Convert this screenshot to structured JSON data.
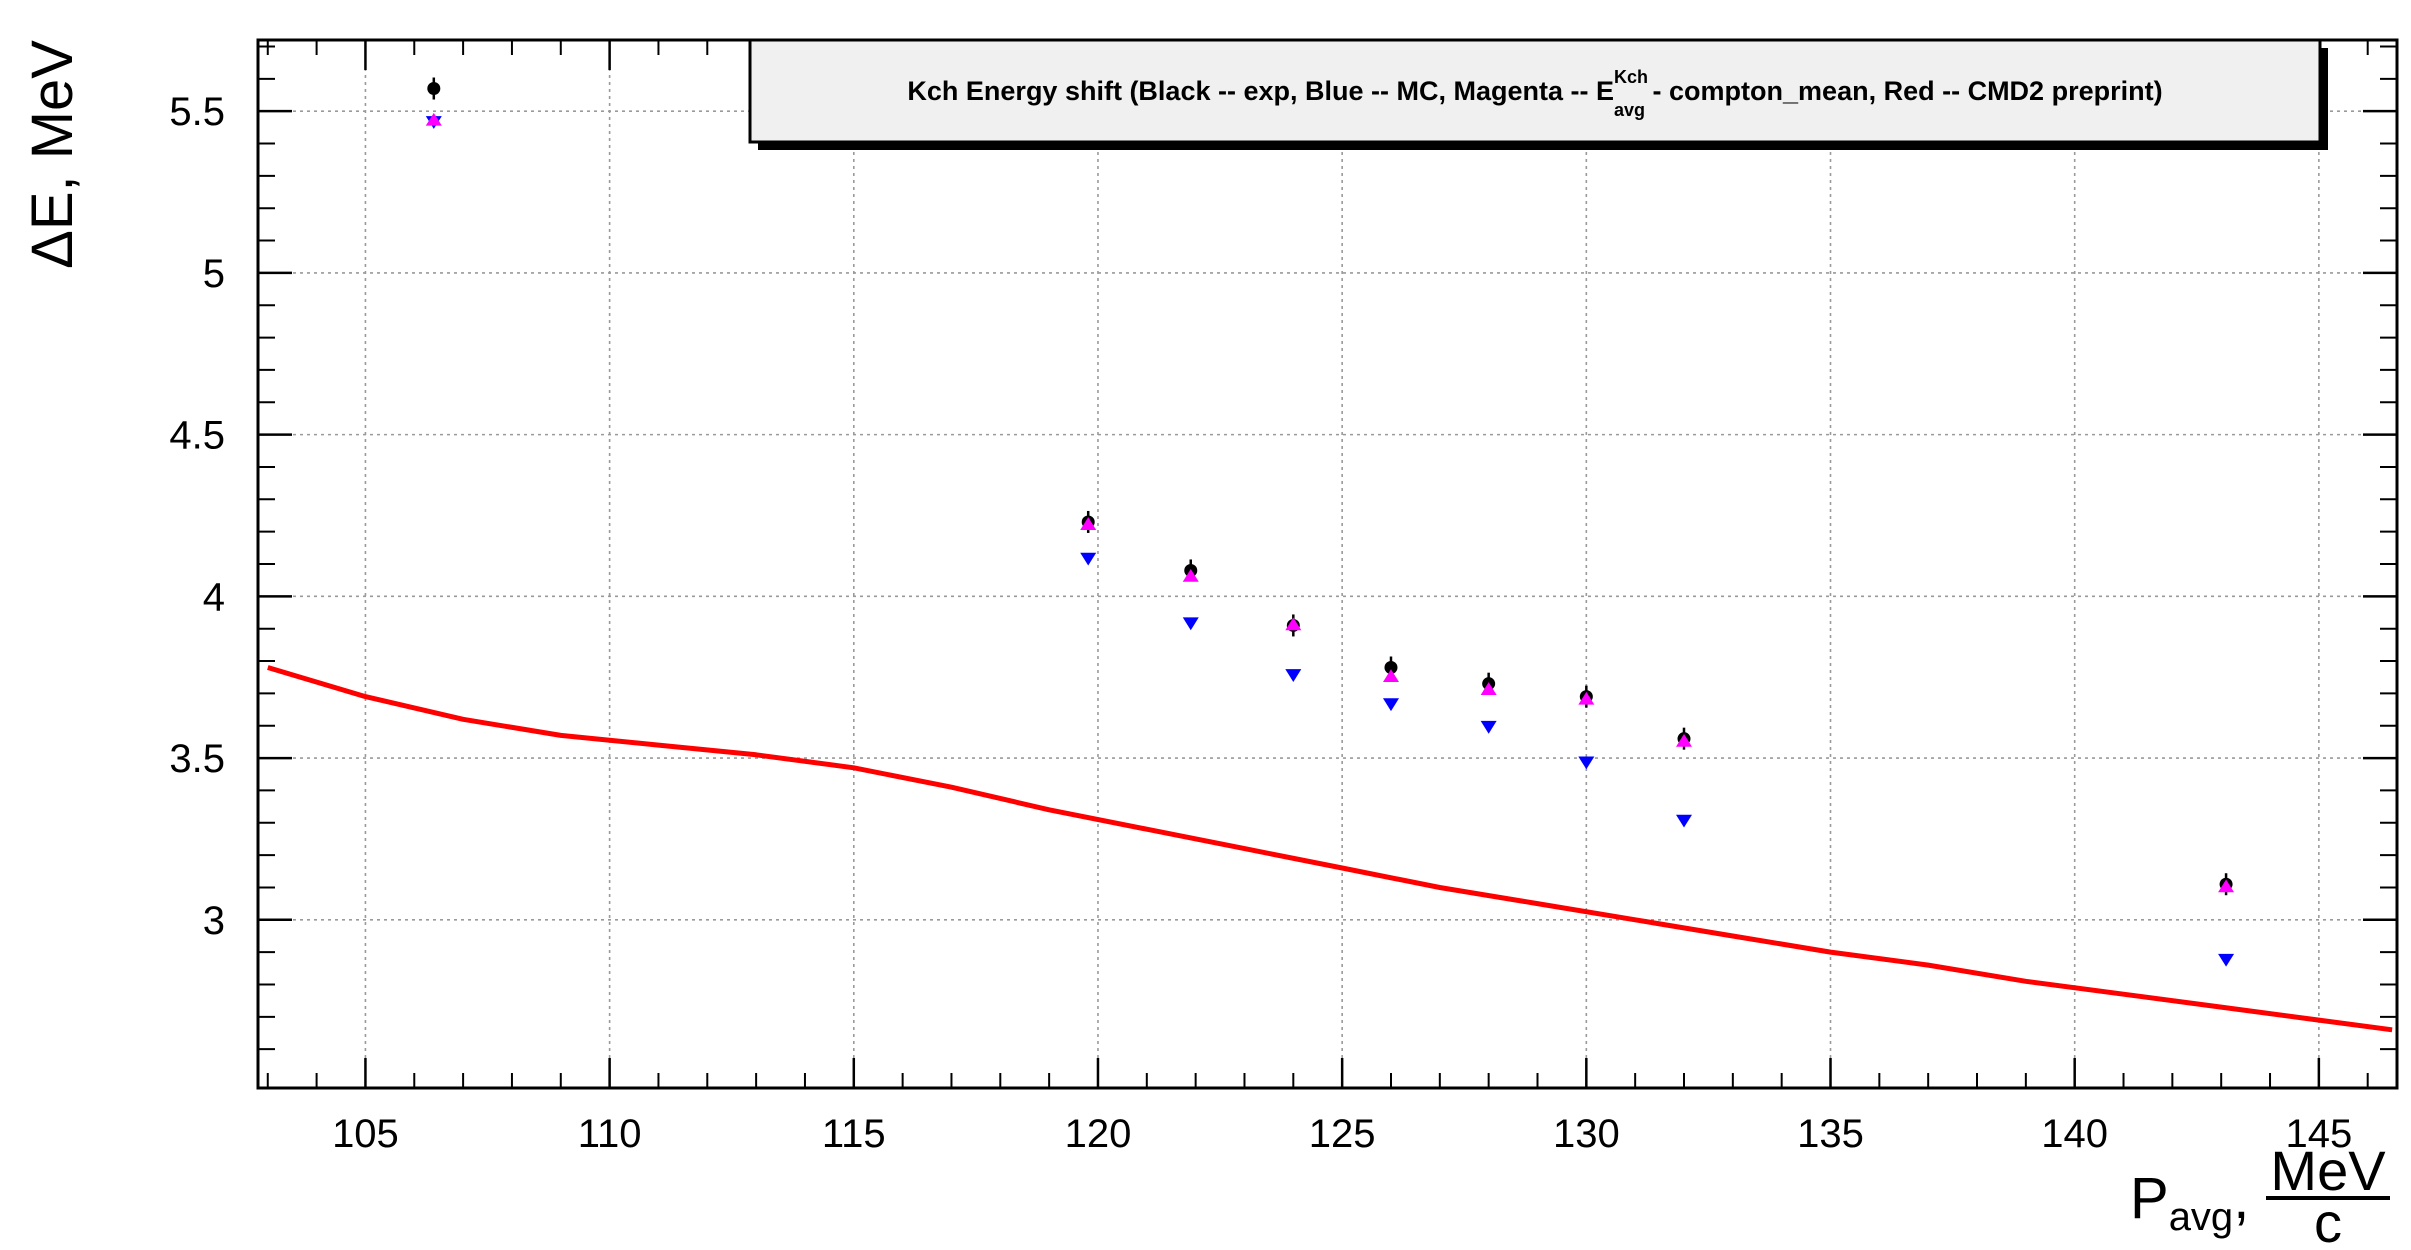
{
  "chart_data": {
    "type": "scatter",
    "title": {
      "main": "Kch Energy shift (Black -- exp, Blue -- MC, Magenta -- E",
      "sup": "Kch",
      "sub": "avg",
      "tail": " - compton_mean, Red -- CMD2 preprint)"
    },
    "ylabel": "ΔE, MeV",
    "xlabel": {
      "base": "P",
      "sub": "avg",
      "sep": ",",
      "frac_num": "MeV",
      "frac_den": "c"
    },
    "xlim": [
      102.8,
      146.6
    ],
    "ylim": [
      2.48,
      5.72
    ],
    "x_ticks": [
      105,
      110,
      115,
      120,
      125,
      130,
      135,
      140,
      145
    ],
    "y_ticks": [
      3,
      3.5,
      4,
      4.5,
      5,
      5.5
    ],
    "x_tick_labels": [
      "105",
      "110",
      "115",
      "120",
      "125",
      "130",
      "135",
      "140",
      "145"
    ],
    "y_tick_labels": [
      "3",
      "3.5",
      "4",
      "4.5",
      "5",
      "5.5"
    ],
    "grid": true,
    "legend": "none",
    "series": [
      {
        "color": "#000000",
        "marker": "circle",
        "points": [
          {
            "x": 106.4,
            "y": 5.57
          },
          {
            "x": 119.8,
            "y": 4.23
          },
          {
            "x": 121.9,
            "y": 4.08
          },
          {
            "x": 124.0,
            "y": 3.91
          },
          {
            "x": 126.0,
            "y": 3.78
          },
          {
            "x": 128.0,
            "y": 3.73
          },
          {
            "x": 130.0,
            "y": 3.69
          },
          {
            "x": 132.0,
            "y": 3.56
          },
          {
            "x": 143.1,
            "y": 3.11
          }
        ]
      },
      {
        "color": "#0000ff",
        "marker": "triangle-down",
        "points": [
          {
            "x": 106.4,
            "y": 5.47
          },
          {
            "x": 119.8,
            "y": 4.12
          },
          {
            "x": 121.9,
            "y": 3.92
          },
          {
            "x": 124.0,
            "y": 3.76
          },
          {
            "x": 126.0,
            "y": 3.67
          },
          {
            "x": 128.0,
            "y": 3.6
          },
          {
            "x": 130.0,
            "y": 3.49
          },
          {
            "x": 132.0,
            "y": 3.31
          },
          {
            "x": 143.1,
            "y": 2.88
          }
        ]
      },
      {
        "color": "#ff00ff",
        "marker": "triangle-up",
        "points": [
          {
            "x": 106.4,
            "y": 5.47
          },
          {
            "x": 119.8,
            "y": 4.22
          },
          {
            "x": 121.9,
            "y": 4.06
          },
          {
            "x": 124.0,
            "y": 3.91
          },
          {
            "x": 126.0,
            "y": 3.75
          },
          {
            "x": 128.0,
            "y": 3.71
          },
          {
            "x": 130.0,
            "y": 3.68
          },
          {
            "x": 132.0,
            "y": 3.55
          },
          {
            "x": 143.1,
            "y": 3.1
          }
        ]
      },
      {
        "color": "#ff0000",
        "marker": "line",
        "points": [
          {
            "x": 103.0,
            "y": 3.78
          },
          {
            "x": 105.0,
            "y": 3.69
          },
          {
            "x": 107.0,
            "y": 3.62
          },
          {
            "x": 109.0,
            "y": 3.57
          },
          {
            "x": 111.0,
            "y": 3.54
          },
          {
            "x": 113.0,
            "y": 3.51
          },
          {
            "x": 115.0,
            "y": 3.47
          },
          {
            "x": 117.0,
            "y": 3.41
          },
          {
            "x": 119.0,
            "y": 3.34
          },
          {
            "x": 121.0,
            "y": 3.28
          },
          {
            "x": 123.0,
            "y": 3.22
          },
          {
            "x": 125.0,
            "y": 3.16
          },
          {
            "x": 127.0,
            "y": 3.1
          },
          {
            "x": 129.0,
            "y": 3.05
          },
          {
            "x": 131.0,
            "y": 3.0
          },
          {
            "x": 133.0,
            "y": 2.95
          },
          {
            "x": 135.0,
            "y": 2.9
          },
          {
            "x": 137.0,
            "y": 2.86
          },
          {
            "x": 139.0,
            "y": 2.81
          },
          {
            "x": 141.0,
            "y": 2.77
          },
          {
            "x": 143.0,
            "y": 2.73
          },
          {
            "x": 145.0,
            "y": 2.69
          },
          {
            "x": 146.5,
            "y": 2.66
          }
        ]
      }
    ]
  }
}
